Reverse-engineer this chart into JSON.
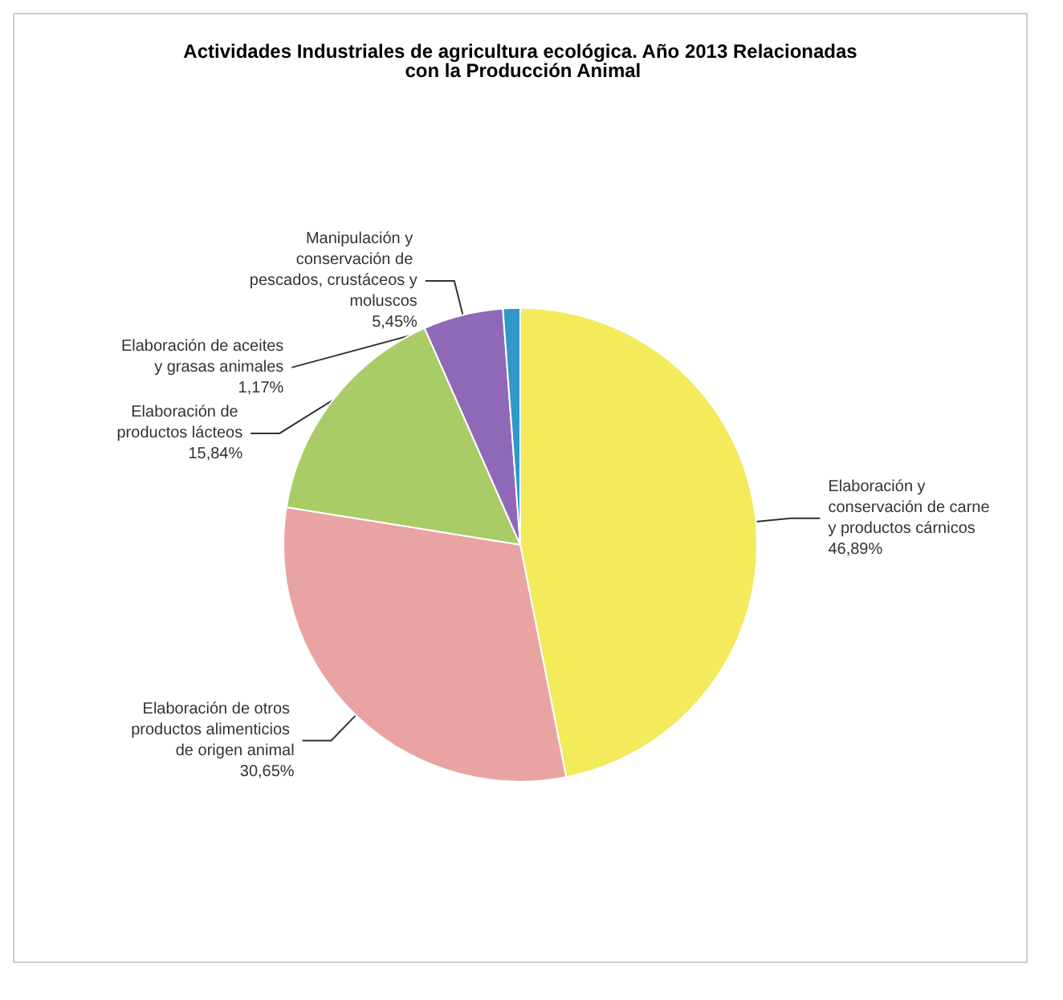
{
  "chart_data": {
    "type": "pie",
    "title": "Actividades Industriales de agricultura ecológica. Año 2013 Relacionadas con la Producción Animal",
    "categories": [
      "Elaboración y conservación de carne y productos cárnicos",
      "Elaboración de otros productos alimenticios de origen animal",
      "Elaboración de productos lácteos",
      "Manipulación y conservación de pescados, crustáceos y moluscos",
      "Elaboración de aceites y grasas animales"
    ],
    "values": [
      46.89,
      30.65,
      15.84,
      5.45,
      1.17
    ],
    "value_labels": [
      "46,89%",
      "30,65%",
      "15,84%",
      "5,45%",
      "1,17%"
    ],
    "colors": [
      "#f3ea5c",
      "#e9a3a3",
      "#a9cc66",
      "#9068b8",
      "#2f98c6"
    ],
    "legend": false
  }
}
